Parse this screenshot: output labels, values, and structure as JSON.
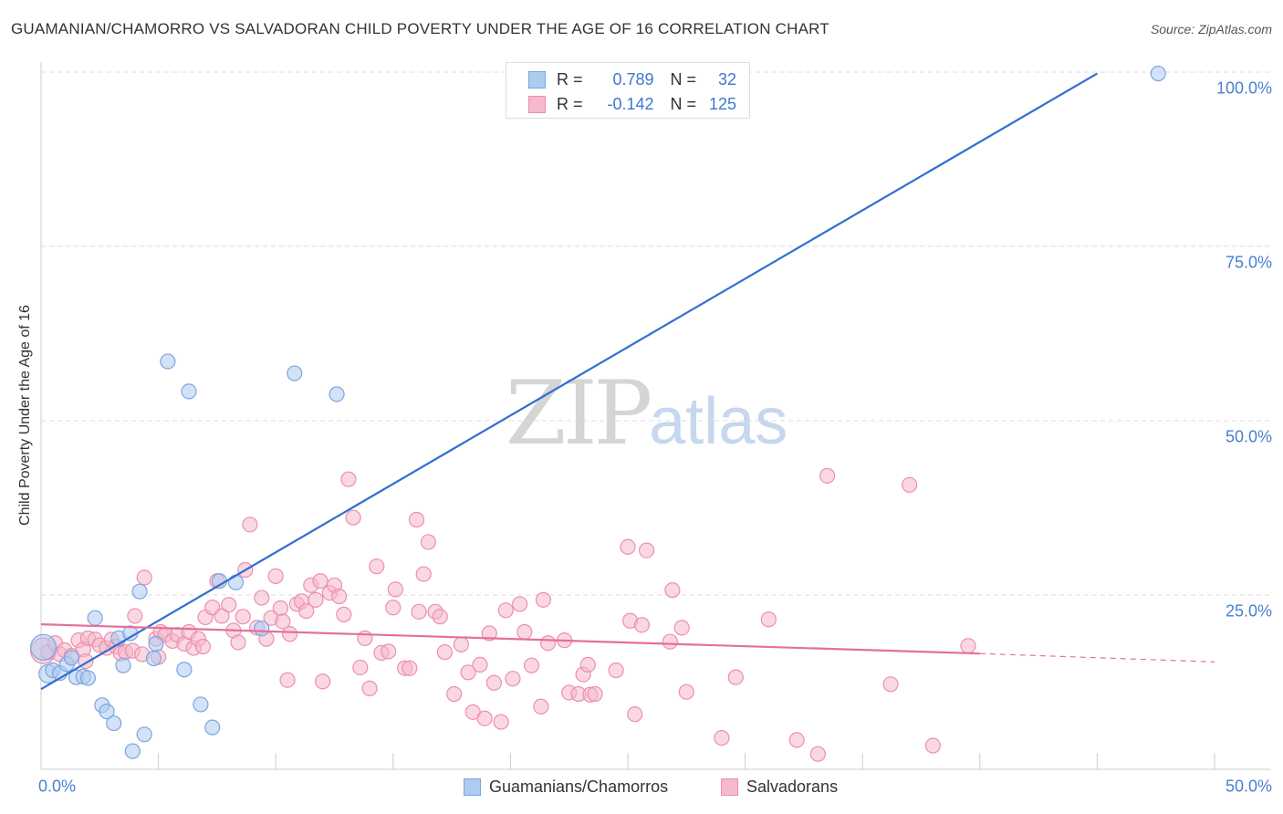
{
  "header": {
    "title": "GUAMANIAN/CHAMORRO VS SALVADORAN CHILD POVERTY UNDER THE AGE OF 16 CORRELATION CHART",
    "source": "Source: ZipAtlas.com"
  },
  "watermark": {
    "zip": "ZIP",
    "atlas": "atlas"
  },
  "legend": {
    "rows": [
      {
        "r_label": "R =",
        "r_value": "0.789",
        "n_label": "N =",
        "n_value": "32"
      },
      {
        "r_label": "R =",
        "r_value": "-0.142",
        "n_label": "N =",
        "n_value": "125"
      }
    ]
  },
  "colors": {
    "guam_fill": "#aecbf0",
    "guam_stroke": "#7aa6e0",
    "guam_line": "#2f6fcf",
    "salv_fill": "#f6b8cb",
    "salv_stroke": "#ec8fad",
    "salv_line": "#e4709a",
    "grid": "#dcdcdc",
    "axis_text": "#4a7fd0"
  },
  "chart_data": {
    "type": "scatter",
    "title": "GUAMANIAN/CHAMORRO VS SALVADORAN CHILD POVERTY UNDER THE AGE OF 16 CORRELATION CHART",
    "xlabel": "",
    "ylabel": "Child Poverty Under the Age of 16",
    "xlim": [
      0,
      50
    ],
    "ylim": [
      0,
      100
    ],
    "x_tick_labels": [
      "0.0%",
      "50.0%"
    ],
    "y_ticks": [
      25,
      50,
      75,
      100
    ],
    "y_tick_labels": [
      "25.0%",
      "50.0%",
      "75.0%",
      "100.0%"
    ],
    "grid": true,
    "legend_position": "top-center",
    "series": [
      {
        "name": "Guamanians/Chamorros",
        "r": 0.789,
        "n": 32,
        "trend": {
          "x": [
            0,
            45
          ],
          "y": [
            11.5,
            99.8
          ]
        },
        "points": [
          {
            "x": 0.1,
            "y": 17.5,
            "s": "L"
          },
          {
            "x": 0.3,
            "y": 13.7,
            "s": "M"
          },
          {
            "x": 0.5,
            "y": 14.2
          },
          {
            "x": 0.8,
            "y": 13.8
          },
          {
            "x": 1.1,
            "y": 15.1
          },
          {
            "x": 1.3,
            "y": 16.0
          },
          {
            "x": 1.5,
            "y": 13.2
          },
          {
            "x": 1.8,
            "y": 13.3
          },
          {
            "x": 2.0,
            "y": 13.1
          },
          {
            "x": 2.3,
            "y": 21.7
          },
          {
            "x": 2.6,
            "y": 9.2
          },
          {
            "x": 2.8,
            "y": 8.3
          },
          {
            "x": 3.1,
            "y": 6.6
          },
          {
            "x": 3.3,
            "y": 18.8
          },
          {
            "x": 3.5,
            "y": 14.9
          },
          {
            "x": 3.8,
            "y": 19.5
          },
          {
            "x": 4.2,
            "y": 25.5
          },
          {
            "x": 4.4,
            "y": 5.0
          },
          {
            "x": 3.9,
            "y": 2.6
          },
          {
            "x": 4.8,
            "y": 15.9
          },
          {
            "x": 4.9,
            "y": 18.0
          },
          {
            "x": 5.4,
            "y": 58.5
          },
          {
            "x": 6.1,
            "y": 14.3
          },
          {
            "x": 6.3,
            "y": 54.2
          },
          {
            "x": 6.8,
            "y": 9.3
          },
          {
            "x": 7.3,
            "y": 6.0
          },
          {
            "x": 7.6,
            "y": 27.0
          },
          {
            "x": 8.3,
            "y": 26.8
          },
          {
            "x": 9.4,
            "y": 20.2
          },
          {
            "x": 10.8,
            "y": 56.8
          },
          {
            "x": 12.6,
            "y": 53.8
          },
          {
            "x": 47.6,
            "y": 99.8
          }
        ]
      },
      {
        "name": "Salvadorans",
        "r": -0.142,
        "n": 125,
        "trend": {
          "x": [
            0,
            40.0
          ],
          "y": [
            20.8,
            16.6
          ]
        },
        "trend_extension": {
          "x": [
            40.0,
            50.0
          ],
          "y": [
            16.6,
            15.4
          ]
        },
        "points": [
          {
            "x": 0.1,
            "y": 17.0,
            "s": "L"
          },
          {
            "x": 0.3,
            "y": 16.8
          },
          {
            "x": 0.6,
            "y": 18.1
          },
          {
            "x": 0.8,
            "y": 16.5
          },
          {
            "x": 1.0,
            "y": 17.1
          },
          {
            "x": 1.3,
            "y": 16.3
          },
          {
            "x": 1.6,
            "y": 18.5
          },
          {
            "x": 1.8,
            "y": 17.2
          },
          {
            "x": 2.0,
            "y": 18.8
          },
          {
            "x": 2.3,
            "y": 18.6
          },
          {
            "x": 2.5,
            "y": 17.8
          },
          {
            "x": 2.8,
            "y": 17.4
          },
          {
            "x": 3.0,
            "y": 18.6
          },
          {
            "x": 3.2,
            "y": 17.6
          },
          {
            "x": 3.4,
            "y": 16.6
          },
          {
            "x": 3.6,
            "y": 16.8
          },
          {
            "x": 3.9,
            "y": 17.0
          },
          {
            "x": 4.0,
            "y": 22.0
          },
          {
            "x": 4.3,
            "y": 16.5
          },
          {
            "x": 4.4,
            "y": 27.5
          },
          {
            "x": 4.9,
            "y": 18.7
          },
          {
            "x": 5.0,
            "y": 16.1
          },
          {
            "x": 5.1,
            "y": 19.7
          },
          {
            "x": 5.3,
            "y": 19.3
          },
          {
            "x": 5.6,
            "y": 18.4
          },
          {
            "x": 5.8,
            "y": 19.3
          },
          {
            "x": 6.1,
            "y": 18.0
          },
          {
            "x": 6.3,
            "y": 19.7
          },
          {
            "x": 6.5,
            "y": 17.4
          },
          {
            "x": 6.7,
            "y": 18.7
          },
          {
            "x": 6.9,
            "y": 17.6
          },
          {
            "x": 7.0,
            "y": 21.8
          },
          {
            "x": 7.3,
            "y": 23.2
          },
          {
            "x": 7.5,
            "y": 27.0
          },
          {
            "x": 7.7,
            "y": 22.0
          },
          {
            "x": 8.0,
            "y": 23.6
          },
          {
            "x": 8.2,
            "y": 19.9
          },
          {
            "x": 8.4,
            "y": 18.2
          },
          {
            "x": 8.6,
            "y": 21.9
          },
          {
            "x": 8.7,
            "y": 28.6
          },
          {
            "x": 8.9,
            "y": 35.1
          },
          {
            "x": 9.2,
            "y": 20.3
          },
          {
            "x": 9.4,
            "y": 24.6
          },
          {
            "x": 9.6,
            "y": 18.7
          },
          {
            "x": 9.8,
            "y": 21.7
          },
          {
            "x": 10.0,
            "y": 27.7
          },
          {
            "x": 10.2,
            "y": 23.1
          },
          {
            "x": 10.3,
            "y": 21.2
          },
          {
            "x": 10.6,
            "y": 19.4
          },
          {
            "x": 10.5,
            "y": 12.8
          },
          {
            "x": 10.9,
            "y": 23.7
          },
          {
            "x": 11.1,
            "y": 24.1
          },
          {
            "x": 11.3,
            "y": 22.7
          },
          {
            "x": 11.5,
            "y": 26.4
          },
          {
            "x": 11.7,
            "y": 24.3
          },
          {
            "x": 11.9,
            "y": 27.0
          },
          {
            "x": 12.0,
            "y": 12.6
          },
          {
            "x": 12.3,
            "y": 25.3
          },
          {
            "x": 12.5,
            "y": 26.4
          },
          {
            "x": 12.7,
            "y": 24.8
          },
          {
            "x": 12.9,
            "y": 22.2
          },
          {
            "x": 13.1,
            "y": 41.6
          },
          {
            "x": 13.3,
            "y": 36.1
          },
          {
            "x": 13.6,
            "y": 14.6
          },
          {
            "x": 13.8,
            "y": 18.8
          },
          {
            "x": 14.0,
            "y": 11.6
          },
          {
            "x": 14.3,
            "y": 29.1
          },
          {
            "x": 14.5,
            "y": 16.7
          },
          {
            "x": 14.8,
            "y": 16.9
          },
          {
            "x": 15.0,
            "y": 23.2
          },
          {
            "x": 15.1,
            "y": 25.8
          },
          {
            "x": 15.5,
            "y": 14.5
          },
          {
            "x": 15.7,
            "y": 14.5
          },
          {
            "x": 16.0,
            "y": 35.8
          },
          {
            "x": 16.1,
            "y": 22.6
          },
          {
            "x": 16.3,
            "y": 28.0
          },
          {
            "x": 16.5,
            "y": 32.6
          },
          {
            "x": 16.8,
            "y": 22.6
          },
          {
            "x": 17.0,
            "y": 21.9
          },
          {
            "x": 17.2,
            "y": 16.8
          },
          {
            "x": 17.6,
            "y": 10.8
          },
          {
            "x": 17.9,
            "y": 17.9
          },
          {
            "x": 18.2,
            "y": 13.9
          },
          {
            "x": 18.4,
            "y": 8.2
          },
          {
            "x": 18.7,
            "y": 15.0
          },
          {
            "x": 18.9,
            "y": 7.3
          },
          {
            "x": 19.1,
            "y": 19.5
          },
          {
            "x": 19.3,
            "y": 12.4
          },
          {
            "x": 19.6,
            "y": 6.8
          },
          {
            "x": 19.8,
            "y": 22.8
          },
          {
            "x": 20.1,
            "y": 13.0
          },
          {
            "x": 20.4,
            "y": 23.7
          },
          {
            "x": 20.6,
            "y": 19.7
          },
          {
            "x": 20.9,
            "y": 14.9
          },
          {
            "x": 21.4,
            "y": 24.3
          },
          {
            "x": 21.3,
            "y": 9.0
          },
          {
            "x": 21.6,
            "y": 18.1
          },
          {
            "x": 22.3,
            "y": 18.5
          },
          {
            "x": 22.5,
            "y": 11.0
          },
          {
            "x": 22.9,
            "y": 10.8
          },
          {
            "x": 23.1,
            "y": 13.6
          },
          {
            "x": 23.3,
            "y": 15.0
          },
          {
            "x": 23.4,
            "y": 10.7
          },
          {
            "x": 23.6,
            "y": 10.8
          },
          {
            "x": 24.5,
            "y": 14.2
          },
          {
            "x": 25.0,
            "y": 31.9
          },
          {
            "x": 25.1,
            "y": 21.3
          },
          {
            "x": 25.3,
            "y": 7.9
          },
          {
            "x": 25.6,
            "y": 20.7
          },
          {
            "x": 25.8,
            "y": 31.4
          },
          {
            "x": 26.8,
            "y": 18.3
          },
          {
            "x": 26.9,
            "y": 25.7
          },
          {
            "x": 27.3,
            "y": 20.3
          },
          {
            "x": 27.5,
            "y": 11.1
          },
          {
            "x": 29.0,
            "y": 4.5
          },
          {
            "x": 29.6,
            "y": 13.2
          },
          {
            "x": 31.0,
            "y": 21.5
          },
          {
            "x": 32.2,
            "y": 4.2
          },
          {
            "x": 33.1,
            "y": 2.2
          },
          {
            "x": 33.5,
            "y": 42.1
          },
          {
            "x": 37.0,
            "y": 40.8
          },
          {
            "x": 36.2,
            "y": 12.2
          },
          {
            "x": 38.0,
            "y": 3.4
          },
          {
            "x": 39.5,
            "y": 17.7
          },
          {
            "x": 1.9,
            "y": 15.5
          }
        ]
      }
    ]
  },
  "bottom_legend": [
    {
      "label": "Guamanians/Chamorros"
    },
    {
      "label": "Salvadorans"
    }
  ]
}
